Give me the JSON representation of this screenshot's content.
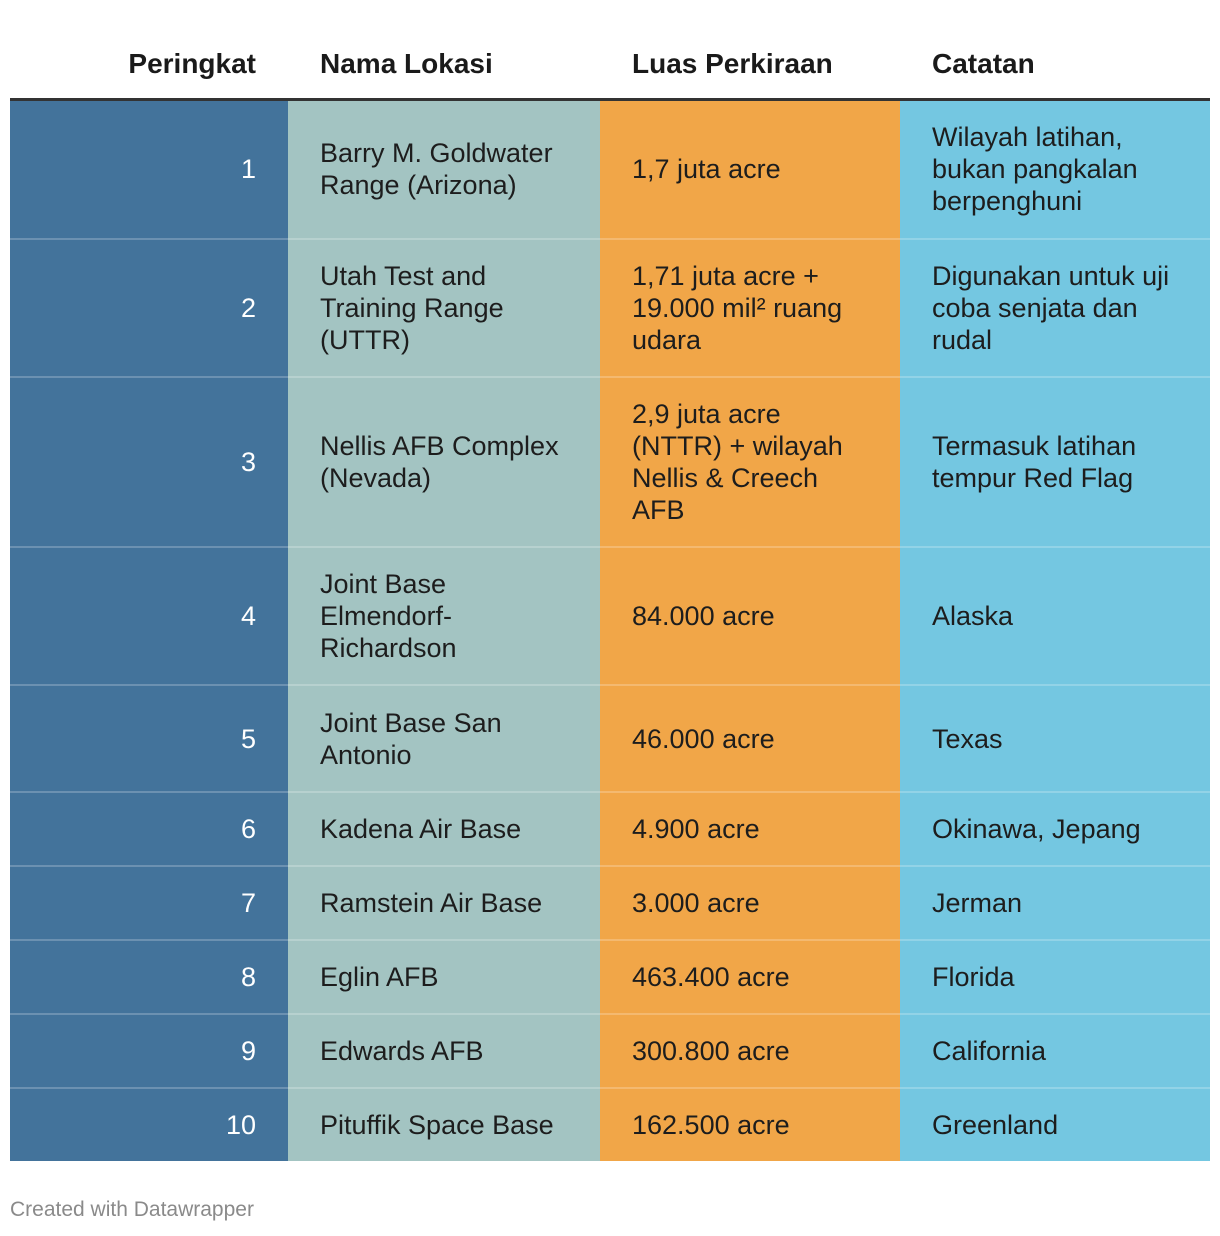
{
  "colors": {
    "rank_column": "#43739b",
    "location_column": "#a3c4c2",
    "area_column": "#f1a648",
    "note_column": "#74c7e1",
    "header_rule": "#333333"
  },
  "chart_data": {
    "type": "table",
    "columns": [
      "Peringkat",
      "Nama Lokasi",
      "Luas Perkiraan",
      "Catatan"
    ],
    "rows": [
      {
        "rank": "1",
        "location": "Barry M. Goldwater Range (Arizona)",
        "area": "1,7 juta acre",
        "note": "Wilayah latihan, bukan pangkalan berpenghuni"
      },
      {
        "rank": "2",
        "location": "Utah Test and Training Range (UTTR)",
        "area": "1,71 juta acre + 19.000 mil² ruang udara",
        "note": "Digunakan untuk uji coba senjata dan rudal"
      },
      {
        "rank": "3",
        "location": "Nellis AFB Complex (Nevada)",
        "area": "2,9 juta acre (NTTR) + wilayah Nellis & Creech AFB",
        "note": "Termasuk latihan tempur Red Flag"
      },
      {
        "rank": "4",
        "location": "Joint Base Elmendorf-Richardson",
        "area": "84.000 acre",
        "note": "Alaska"
      },
      {
        "rank": "5",
        "location": "Joint Base San Antonio",
        "area": "46.000 acre",
        "note": "Texas"
      },
      {
        "rank": "6",
        "location": "Kadena Air Base",
        "area": "4.900 acre",
        "note": "Okinawa, Jepang"
      },
      {
        "rank": "7",
        "location": "Ramstein Air Base",
        "area": "3.000 acre",
        "note": "Jerman"
      },
      {
        "rank": "8",
        "location": "Eglin AFB",
        "area": "463.400 acre",
        "note": "Florida"
      },
      {
        "rank": "9",
        "location": "Edwards AFB",
        "area": "300.800 acre",
        "note": "California"
      },
      {
        "rank": "10",
        "location": "Pituffik Space Base",
        "area": "162.500 acre",
        "note": "Greenland"
      }
    ]
  },
  "footer": {
    "credit": "Created with Datawrapper"
  }
}
